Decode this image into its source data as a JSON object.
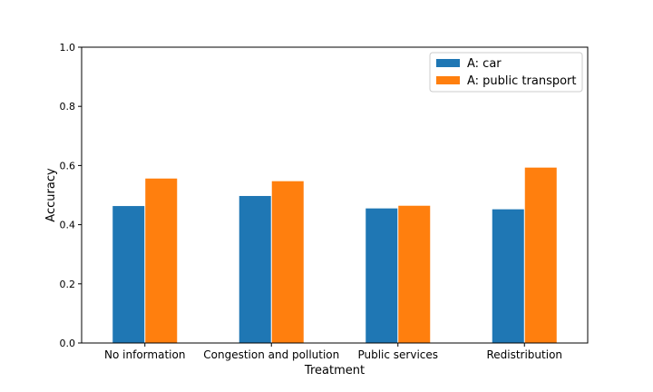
{
  "chart_data": {
    "type": "bar",
    "categories": [
      "No information",
      "Congestion and pollution",
      "Public services",
      "Redistribution"
    ],
    "series": [
      {
        "name": "A: car",
        "values": [
          0.463,
          0.497,
          0.455,
          0.452
        ],
        "color": "#1f77b4"
      },
      {
        "name": "A: public transport",
        "values": [
          0.556,
          0.547,
          0.464,
          0.593
        ],
        "color": "#ff7f0e"
      }
    ],
    "xlabel": "Treatment",
    "ylabel": "Accuracy",
    "ylim": [
      0.0,
      1.0
    ],
    "yticks": [
      "0.0",
      "0.2",
      "0.4",
      "0.6",
      "0.8",
      "1.0"
    ],
    "grid": false,
    "legend_position": "top-right"
  }
}
